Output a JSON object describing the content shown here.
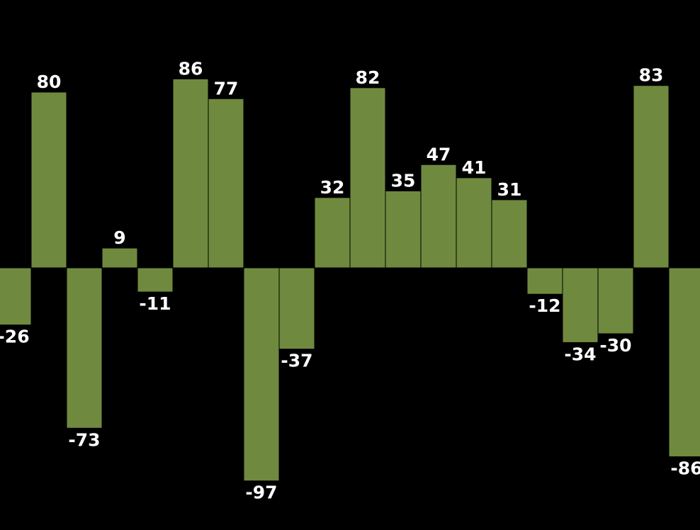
{
  "chart_data": {
    "type": "bar",
    "categories": [
      "",
      "",
      "",
      "",
      "",
      "",
      "",
      "",
      "",
      "",
      "",
      "",
      "",
      "",
      "",
      "",
      "",
      "",
      "",
      ""
    ],
    "values": [
      -26,
      80,
      -73,
      9,
      -11,
      86,
      77,
      -97,
      -37,
      32,
      82,
      35,
      47,
      41,
      31,
      -12,
      -34,
      -30,
      83,
      -86
    ],
    "title": "",
    "xlabel": "",
    "ylabel": "",
    "ylim": [
      -118,
      118
    ],
    "grid": false,
    "legend": "none",
    "data_labels": true
  },
  "colors": {
    "background": "#000000",
    "bar_fill": "#6f8a3e",
    "bar_stroke": "#000000",
    "label": "#ffffff"
  }
}
